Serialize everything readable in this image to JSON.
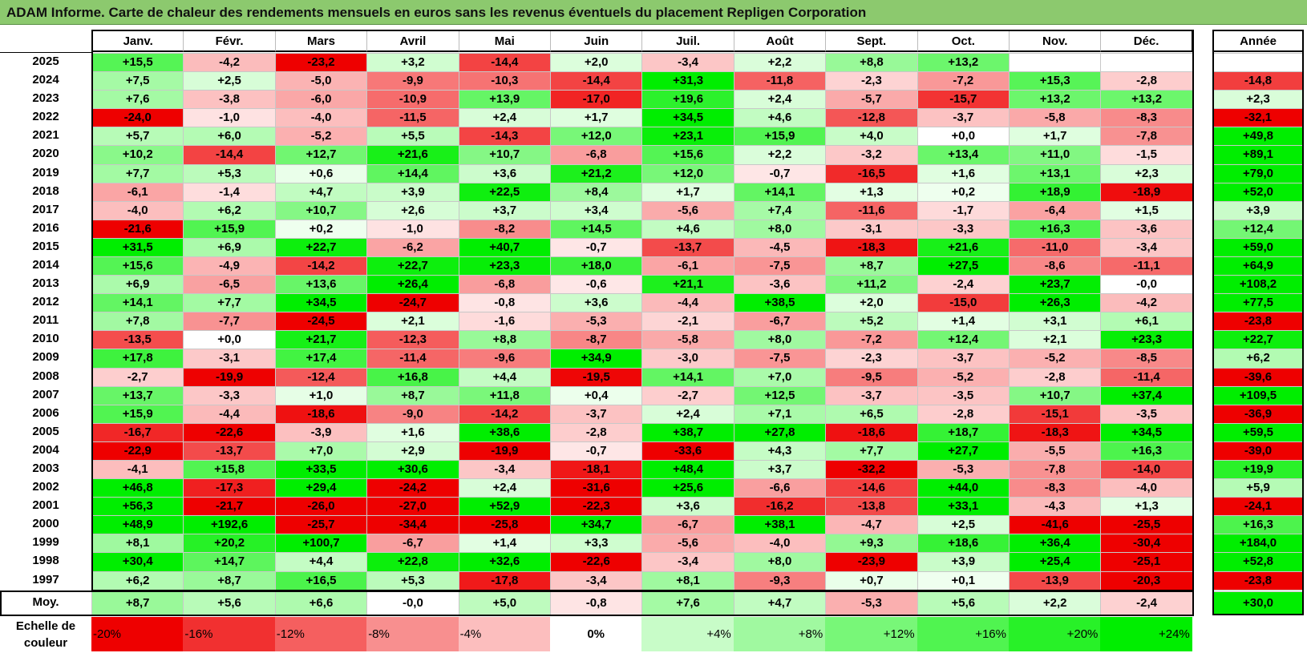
{
  "title": "ADAM Informe. Carte de chaleur des rendements mensuels en euros sans les revenus éventuels du placement Repligen Corporation",
  "months": [
    "Janv.",
    "Févr.",
    "Mars",
    "Avril",
    "Mai",
    "Juin",
    "Juil.",
    "Août",
    "Sept.",
    "Oct.",
    "Nov.",
    "Déc."
  ],
  "annual_header": "Année",
  "average_label": "Moy.",
  "scale_label": "Echelle de couleur",
  "scale": [
    "-20%",
    "-16%",
    "-12%",
    "-8%",
    "-4%",
    "0%",
    "+4%",
    "+8%",
    "+12%",
    "+16%",
    "+20%",
    "+24%"
  ],
  "colors": {
    "positive_max": "#00ee00",
    "negative_max": "#ee0000",
    "neutral": "#ffffff",
    "title_bar": "#8cc96e"
  },
  "chart_data": {
    "type": "heatmap",
    "x": [
      "Janv.",
      "Févr.",
      "Mars",
      "Avril",
      "Mai",
      "Juin",
      "Juil.",
      "Août",
      "Sept.",
      "Oct.",
      "Nov.",
      "Déc."
    ],
    "rows": [
      {
        "year": "2025",
        "values": [
          "+15,5",
          "-4,2",
          "-23,2",
          "+3,2",
          "-14,4",
          "+2,0",
          "-3,4",
          "+2,2",
          "+8,8",
          "+13,2",
          "",
          ""
        ],
        "annual": ""
      },
      {
        "year": "2024",
        "values": [
          "+7,5",
          "+2,5",
          "-5,0",
          "-9,9",
          "-10,3",
          "-14,4",
          "+31,3",
          "-11,8",
          "-2,3",
          "-7,2",
          "+15,3",
          "-2,8"
        ],
        "annual": "-14,8"
      },
      {
        "year": "2023",
        "values": [
          "+7,6",
          "-3,8",
          "-6,0",
          "-10,9",
          "+13,9",
          "-17,0",
          "+19,6",
          "+2,4",
          "-5,7",
          "-15,7",
          "+13,2",
          "+13,2"
        ],
        "annual": "+2,3"
      },
      {
        "year": "2022",
        "values": [
          "-24,0",
          "-1,0",
          "-4,0",
          "-11,5",
          "+2,4",
          "+1,7",
          "+34,5",
          "+4,6",
          "-12,8",
          "-3,7",
          "-5,8",
          "-8,3"
        ],
        "annual": "-32,1"
      },
      {
        "year": "2021",
        "values": [
          "+5,7",
          "+6,0",
          "-5,2",
          "+5,5",
          "-14,3",
          "+12,0",
          "+23,1",
          "+15,9",
          "+4,0",
          "+0,0",
          "+1,7",
          "-7,8"
        ],
        "annual": "+49,8"
      },
      {
        "year": "2020",
        "values": [
          "+10,2",
          "-14,4",
          "+12,7",
          "+21,6",
          "+10,7",
          "-6,8",
          "+15,6",
          "+2,2",
          "-3,2",
          "+13,4",
          "+11,0",
          "-1,5"
        ],
        "annual": "+89,1"
      },
      {
        "year": "2019",
        "values": [
          "+7,7",
          "+5,3",
          "+0,6",
          "+14,4",
          "+3,6",
          "+21,2",
          "+12,0",
          "-0,7",
          "-16,5",
          "+1,6",
          "+13,1",
          "+2,3"
        ],
        "annual": "+79,0"
      },
      {
        "year": "2018",
        "values": [
          "-6,1",
          "-1,4",
          "+4,7",
          "+3,9",
          "+22,5",
          "+8,4",
          "+1,7",
          "+14,1",
          "+1,3",
          "+0,2",
          "+18,9",
          "-18,9"
        ],
        "annual": "+52,0"
      },
      {
        "year": "2017",
        "values": [
          "-4,0",
          "+6,2",
          "+10,7",
          "+2,6",
          "+3,7",
          "+3,4",
          "-5,6",
          "+7,4",
          "-11,6",
          "-1,7",
          "-6,4",
          "+1,5"
        ],
        "annual": "+3,9"
      },
      {
        "year": "2016",
        "values": [
          "-21,6",
          "+15,9",
          "+0,2",
          "-1,0",
          "-8,2",
          "+14,5",
          "+4,6",
          "+8,0",
          "-3,1",
          "-3,3",
          "+16,3",
          "-3,6"
        ],
        "annual": "+12,4"
      },
      {
        "year": "2015",
        "values": [
          "+31,5",
          "+6,9",
          "+22,7",
          "-6,2",
          "+40,7",
          "-0,7",
          "-13,7",
          "-4,5",
          "-18,3",
          "+21,6",
          "-11,0",
          "-3,4"
        ],
        "annual": "+59,0"
      },
      {
        "year": "2014",
        "values": [
          "+15,6",
          "-4,9",
          "-14,2",
          "+22,7",
          "+23,3",
          "+18,0",
          "-6,1",
          "-7,5",
          "+8,7",
          "+27,5",
          "-8,6",
          "-11,1"
        ],
        "annual": "+64,9"
      },
      {
        "year": "2013",
        "values": [
          "+6,9",
          "-6,5",
          "+13,6",
          "+26,4",
          "-6,8",
          "-0,6",
          "+21,1",
          "-3,6",
          "+11,2",
          "-2,4",
          "+23,7",
          "-0,0"
        ],
        "annual": "+108,2"
      },
      {
        "year": "2012",
        "values": [
          "+14,1",
          "+7,7",
          "+34,5",
          "-24,7",
          "-0,8",
          "+3,6",
          "-4,4",
          "+38,5",
          "+2,0",
          "-15,0",
          "+26,3",
          "-4,2"
        ],
        "annual": "+77,5"
      },
      {
        "year": "2011",
        "values": [
          "+7,8",
          "-7,7",
          "-24,5",
          "+2,1",
          "-1,6",
          "-5,3",
          "-2,1",
          "-6,7",
          "+5,2",
          "+1,4",
          "+3,1",
          "+6,1"
        ],
        "annual": "-23,8"
      },
      {
        "year": "2010",
        "values": [
          "-13,5",
          "+0,0",
          "+21,7",
          "-12,3",
          "+8,8",
          "-8,7",
          "-5,8",
          "+8,0",
          "-7,2",
          "+12,4",
          "+2,1",
          "+23,3"
        ],
        "annual": "+22,7"
      },
      {
        "year": "2009",
        "values": [
          "+17,8",
          "-3,1",
          "+17,4",
          "-11,4",
          "-9,6",
          "+34,9",
          "-3,0",
          "-7,5",
          "-2,3",
          "-3,7",
          "-5,2",
          "-8,5"
        ],
        "annual": "+6,2"
      },
      {
        "year": "2008",
        "values": [
          "-2,7",
          "-19,9",
          "-12,4",
          "+16,8",
          "+4,4",
          "-19,5",
          "+14,1",
          "+7,0",
          "-9,5",
          "-5,2",
          "-2,8",
          "-11,4"
        ],
        "annual": "-39,6"
      },
      {
        "year": "2007",
        "values": [
          "+13,7",
          "-3,3",
          "+1,0",
          "+8,7",
          "+11,8",
          "+0,4",
          "-2,7",
          "+12,5",
          "-3,7",
          "-3,5",
          "+10,7",
          "+37,4"
        ],
        "annual": "+109,5"
      },
      {
        "year": "2006",
        "values": [
          "+15,9",
          "-4,4",
          "-18,6",
          "-9,0",
          "-14,2",
          "-3,7",
          "+2,4",
          "+7,1",
          "+6,5",
          "-2,8",
          "-15,1",
          "-3,5"
        ],
        "annual": "-36,9"
      },
      {
        "year": "2005",
        "values": [
          "-16,7",
          "-22,6",
          "-3,9",
          "+1,6",
          "+38,6",
          "-2,8",
          "+38,7",
          "+27,8",
          "-18,6",
          "+18,7",
          "-18,3",
          "+34,5"
        ],
        "annual": "+59,5"
      },
      {
        "year": "2004",
        "values": [
          "-22,9",
          "-13,7",
          "+7,0",
          "+2,9",
          "-19,9",
          "-0,7",
          "-33,6",
          "+4,3",
          "+7,7",
          "+27,7",
          "-5,5",
          "+16,3"
        ],
        "annual": "-39,0"
      },
      {
        "year": "2003",
        "values": [
          "-4,1",
          "+15,8",
          "+33,5",
          "+30,6",
          "-3,4",
          "-18,1",
          "+48,4",
          "+3,7",
          "-32,2",
          "-5,3",
          "-7,8",
          "-14,0"
        ],
        "annual": "+19,9"
      },
      {
        "year": "2002",
        "values": [
          "+46,8",
          "-17,3",
          "+29,4",
          "-24,2",
          "+2,4",
          "-31,6",
          "+25,6",
          "-6,6",
          "-14,6",
          "+44,0",
          "-8,3",
          "-4,0"
        ],
        "annual": "+5,9"
      },
      {
        "year": "2001",
        "values": [
          "+56,3",
          "-21,7",
          "-26,0",
          "-27,0",
          "+52,9",
          "-22,3",
          "+3,6",
          "-16,2",
          "-13,8",
          "+33,1",
          "-4,3",
          "+1,3"
        ],
        "annual": "-24,1"
      },
      {
        "year": "2000",
        "values": [
          "+48,9",
          "+192,6",
          "-25,7",
          "-34,4",
          "-25,8",
          "+34,7",
          "-6,7",
          "+38,1",
          "-4,7",
          "+2,5",
          "-41,6",
          "-25,5"
        ],
        "annual": "+16,3"
      },
      {
        "year": "1999",
        "values": [
          "+8,1",
          "+20,2",
          "+100,7",
          "-6,7",
          "+1,4",
          "+3,3",
          "-5,6",
          "-4,0",
          "+9,3",
          "+18,6",
          "+36,4",
          "-30,4"
        ],
        "annual": "+184,0"
      },
      {
        "year": "1998",
        "values": [
          "+30,4",
          "+14,7",
          "+4,4",
          "+22,8",
          "+32,6",
          "-22,6",
          "-3,4",
          "+8,0",
          "-23,9",
          "+3,9",
          "+25,4",
          "-25,1"
        ],
        "annual": "+52,8"
      },
      {
        "year": "1997",
        "values": [
          "+6,2",
          "+8,7",
          "+16,5",
          "+5,3",
          "-17,8",
          "-3,4",
          "+8,1",
          "-9,3",
          "+0,7",
          "+0,1",
          "-13,9",
          "-20,3"
        ],
        "annual": "-23,8"
      }
    ],
    "average": {
      "values": [
        "+8,7",
        "+5,6",
        "+6,6",
        "-0,0",
        "+5,0",
        "-0,8",
        "+7,6",
        "+4,7",
        "-5,3",
        "+5,6",
        "+2,2",
        "-2,4"
      ],
      "annual": "+30,0"
    },
    "color_scale": {
      "min": -20,
      "max": 24,
      "step": 4,
      "unit": "%"
    }
  }
}
